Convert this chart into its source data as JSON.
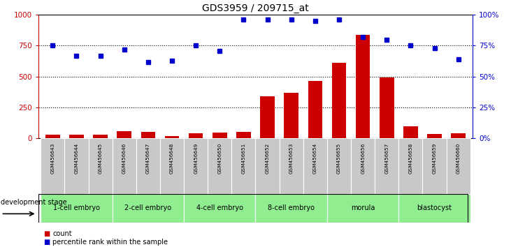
{
  "title": "GDS3959 / 209715_at",
  "samples": [
    "GSM456643",
    "GSM456644",
    "GSM456645",
    "GSM456646",
    "GSM456647",
    "GSM456648",
    "GSM456649",
    "GSM456650",
    "GSM456651",
    "GSM456652",
    "GSM456653",
    "GSM456654",
    "GSM456655",
    "GSM456656",
    "GSM456657",
    "GSM456658",
    "GSM456659",
    "GSM456660"
  ],
  "counts": [
    30,
    28,
    30,
    60,
    55,
    20,
    40,
    45,
    55,
    340,
    370,
    465,
    610,
    840,
    495,
    100,
    35,
    40
  ],
  "percentile_ranks": [
    75,
    67,
    67,
    72,
    62,
    63,
    75,
    71,
    96,
    96,
    96,
    95,
    96,
    82,
    80,
    75,
    73,
    64
  ],
  "stages": [
    {
      "label": "1-cell embryo",
      "start": 0,
      "end": 3
    },
    {
      "label": "2-cell embryo",
      "start": 3,
      "end": 6
    },
    {
      "label": "4-cell embryo",
      "start": 6,
      "end": 9
    },
    {
      "label": "8-cell embryo",
      "start": 9,
      "end": 12
    },
    {
      "label": "morula",
      "start": 12,
      "end": 15
    },
    {
      "label": "blastocyst",
      "start": 15,
      "end": 18
    }
  ],
  "bar_color": "#cc0000",
  "dot_color": "#0000cc",
  "left_axis_color": "#cc0000",
  "right_axis_color": "#0000cc",
  "stage_bg_color": "#90EE90",
  "sample_bg_color": "#c8c8c8",
  "left_ylim": [
    0,
    1000
  ],
  "right_ylim": [
    0,
    100
  ],
  "left_yticks": [
    0,
    250,
    500,
    750,
    1000
  ],
  "right_yticks": [
    0,
    25,
    50,
    75,
    100
  ],
  "right_yticklabels": [
    "0%",
    "25%",
    "50%",
    "75%",
    "100%"
  ],
  "grid_values": [
    250,
    500,
    750
  ]
}
